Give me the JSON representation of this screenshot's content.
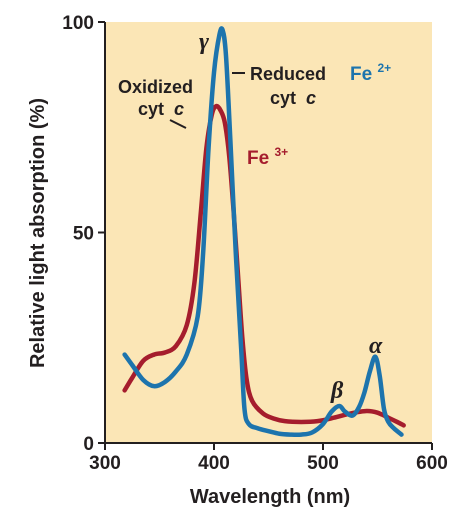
{
  "chart_data": {
    "type": "line",
    "xlabel": "Wavelength (nm)",
    "ylabel": "Relative light absorption (%)",
    "xlim": [
      300,
      600
    ],
    "ylim": [
      0,
      100
    ],
    "x_ticks": [
      "300",
      "400",
      "500",
      "600"
    ],
    "y_ticks": [
      "0",
      "50",
      "100"
    ],
    "x_tick_values": [
      300,
      400,
      500,
      600
    ],
    "y_tick_values": [
      0,
      50,
      100
    ],
    "background_color": "#fbe6b6",
    "series": [
      {
        "name": "Reduced cyt c",
        "ion": "Fe",
        "charge": "2+",
        "color": "#1d74ad",
        "points": [
          [
            318,
            21
          ],
          [
            325,
            18.5
          ],
          [
            335,
            15
          ],
          [
            345,
            13.5
          ],
          [
            355,
            14.5
          ],
          [
            365,
            17
          ],
          [
            375,
            21
          ],
          [
            385,
            30
          ],
          [
            390,
            45
          ],
          [
            395,
            70
          ],
          [
            400,
            88
          ],
          [
            405,
            97
          ],
          [
            408,
            98
          ],
          [
            411,
            92
          ],
          [
            415,
            72
          ],
          [
            420,
            45
          ],
          [
            425,
            22
          ],
          [
            428,
            8
          ],
          [
            432,
            4.5
          ],
          [
            440,
            3.5
          ],
          [
            450,
            2.8
          ],
          [
            460,
            2.2
          ],
          [
            470,
            2
          ],
          [
            480,
            2
          ],
          [
            490,
            2.5
          ],
          [
            500,
            4.5
          ],
          [
            508,
            7.5
          ],
          [
            515,
            8.8
          ],
          [
            520,
            7.5
          ],
          [
            527,
            6.5
          ],
          [
            533,
            8.5
          ],
          [
            538,
            12
          ],
          [
            543,
            17
          ],
          [
            548,
            20.5
          ],
          [
            552,
            16
          ],
          [
            556,
            8
          ],
          [
            560,
            5
          ],
          [
            565,
            3.5
          ],
          [
            572,
            2
          ]
        ]
      },
      {
        "name": "Oxidized cyt c",
        "ion": "Fe",
        "charge": "3+",
        "color": "#a51d2d",
        "points": [
          [
            318,
            12.5
          ],
          [
            325,
            15.5
          ],
          [
            335,
            19.5
          ],
          [
            345,
            21
          ],
          [
            355,
            21.5
          ],
          [
            365,
            23
          ],
          [
            375,
            28
          ],
          [
            382,
            38
          ],
          [
            388,
            55
          ],
          [
            393,
            70
          ],
          [
            398,
            78
          ],
          [
            402,
            80
          ],
          [
            406,
            79
          ],
          [
            410,
            76
          ],
          [
            414,
            68
          ],
          [
            418,
            55
          ],
          [
            422,
            40
          ],
          [
            426,
            25
          ],
          [
            430,
            15
          ],
          [
            435,
            10
          ],
          [
            445,
            7
          ],
          [
            455,
            5.8
          ],
          [
            465,
            5.2
          ],
          [
            480,
            5
          ],
          [
            495,
            5.2
          ],
          [
            510,
            6
          ],
          [
            525,
            7
          ],
          [
            540,
            7.6
          ],
          [
            550,
            7.2
          ],
          [
            560,
            6
          ],
          [
            568,
            5
          ],
          [
            574,
            4.2
          ]
        ]
      }
    ],
    "annotations": {
      "gamma": "γ",
      "beta": "β",
      "alpha": "α",
      "reduced_line1": "Reduced",
      "reduced_line2": "cyt",
      "oxidized_line1": "Oxidized",
      "oxidized_line2": "cyt",
      "c_letter": "c"
    }
  }
}
